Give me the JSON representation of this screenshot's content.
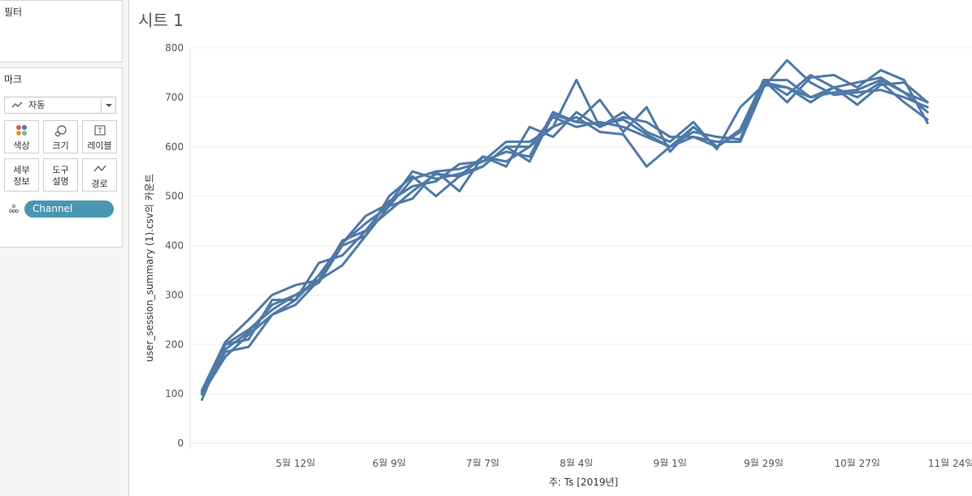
{
  "sidebar": {
    "filters": {
      "title": "필터"
    },
    "marks": {
      "title": "마크",
      "mark_type": "자동",
      "buttons": [
        {
          "label": "색상",
          "icon": "color-dots-icon"
        },
        {
          "label": "크기",
          "icon": "size-icon"
        },
        {
          "label": "레이블",
          "icon": "label-icon"
        },
        {
          "label_line1": "세부",
          "label_line2": "정보",
          "icon": "detail-icon"
        },
        {
          "label_line1": "도구",
          "label_line2": "설명",
          "icon": "tooltip-icon"
        },
        {
          "label": "경로",
          "icon": "path-icon"
        }
      ],
      "pill": "Channel"
    }
  },
  "sheet": {
    "title": "시트 1"
  },
  "colors": {
    "line": "#4e79a7",
    "pill": "#4996b2"
  },
  "chart_data": {
    "type": "line",
    "xlabel": "주: Ts [2019년]",
    "ylabel": "user_session_summary (1).csv의 카운트",
    "ylim": [
      0,
      800
    ],
    "yticks": [
      0,
      100,
      200,
      300,
      400,
      500,
      600,
      700,
      800
    ],
    "x_tick_labels": [
      {
        "label": "5월 12일",
        "week": 4
      },
      {
        "label": "6월 9일",
        "week": 8
      },
      {
        "label": "7월 7일",
        "week": 12
      },
      {
        "label": "8월 4일",
        "week": 16
      },
      {
        "label": "9월 1일",
        "week": 20
      },
      {
        "label": "9월 29일",
        "week": 24
      },
      {
        "label": "10월 27일",
        "week": 28
      },
      {
        "label": "11월 24일",
        "week": 32
      }
    ],
    "x_range": [
      -0.5,
      32.9
    ],
    "series": [
      {
        "values": [
          106,
          200,
          230,
          270,
          300,
          330,
          410,
          430,
          470,
          510,
          545,
          540,
          560,
          600,
          600,
          660,
          640,
          650,
          640,
          620,
          600,
          640,
          600,
          630,
          730,
          720,
          690,
          720,
          730,
          740,
          710,
          690
        ]
      },
      {
        "values": [
          101,
          185,
          195,
          260,
          280,
          330,
          360,
          420,
          480,
          535,
          550,
          555,
          570,
          610,
          610,
          640,
          735,
          640,
          660,
          650,
          620,
          620,
          610,
          610,
          720,
          775,
          730,
          705,
          710,
          715,
          700,
          680
        ]
      },
      {
        "values": [
          88,
          200,
          210,
          290,
          290,
          365,
          380,
          430,
          490,
          520,
          530,
          565,
          570,
          590,
          580,
          670,
          650,
          645,
          655,
          625,
          600,
          620,
          600,
          635,
          735,
          690,
          740,
          745,
          720,
          755,
          735,
          648
        ]
      },
      {
        "values": [
          104,
          190,
          225,
          280,
          300,
          325,
          400,
          420,
          500,
          540,
          500,
          540,
          580,
          570,
          600,
          640,
          660,
          630,
          625,
          560,
          600,
          630,
          620,
          615,
          735,
          705,
          745,
          720,
          685,
          725,
          730,
          690
        ]
      },
      {
        "values": [
          99,
          175,
          220,
          260,
          290,
          340,
          405,
          445,
          480,
          495,
          550,
          510,
          580,
          560,
          640,
          620,
          670,
          640,
          670,
          630,
          610,
          650,
          595,
          680,
          725,
          720,
          700,
          710,
          715,
          735,
          710,
          670
        ]
      },
      {
        "values": [
          107,
          205,
          250,
          300,
          320,
          330,
          405,
          460,
          485,
          550,
          535,
          545,
          560,
          600,
          570,
          665,
          650,
          695,
          630,
          680,
          590,
          640,
          600,
          630,
          735,
          735,
          700,
          720,
          700,
          730,
          690,
          655
        ]
      }
    ]
  }
}
